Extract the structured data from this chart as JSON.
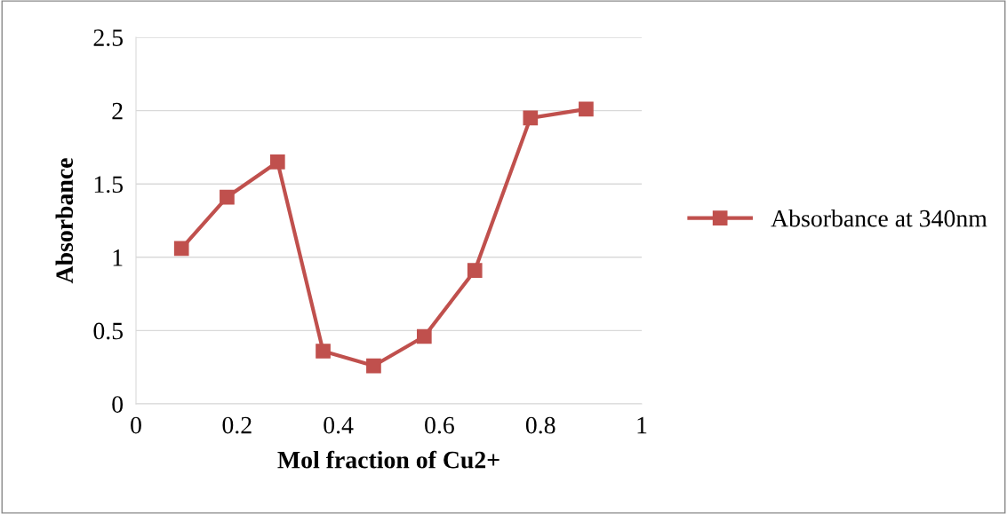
{
  "chart_data": {
    "type": "line",
    "xlabel": "Mol fraction of Cu2+",
    "ylabel": "Absorbance",
    "x": [
      0.09,
      0.18,
      0.28,
      0.37,
      0.47,
      0.57,
      0.67,
      0.78,
      0.89
    ],
    "series": [
      {
        "name": "Absorbance at 340nm",
        "color": "#c0504d",
        "values": [
          1.06,
          1.41,
          1.65,
          0.36,
          0.26,
          0.46,
          0.91,
          1.95,
          2.01
        ]
      }
    ],
    "xlim": [
      0,
      1
    ],
    "xticks": [
      0,
      0.2,
      0.4,
      0.6,
      0.8,
      1
    ],
    "ylim": [
      0,
      2.5
    ],
    "yticks": [
      0,
      0.5,
      1,
      1.5,
      2,
      2.5
    ],
    "grid": "y",
    "legend": "right",
    "marker": "square",
    "line_style": "solid"
  }
}
